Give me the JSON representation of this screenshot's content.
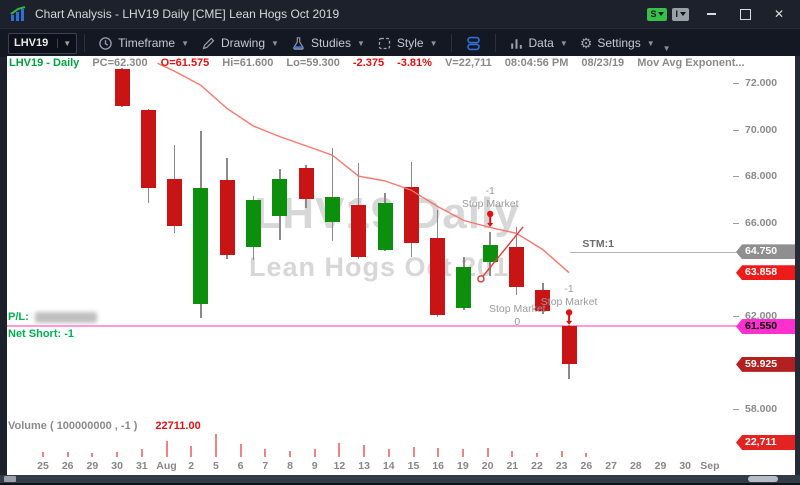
{
  "window": {
    "title": "Chart Analysis - LHV19 Daily [CME] Lean Hogs Oct 2019",
    "app_icon": "chart-app-icon",
    "status_badges": [
      {
        "label": "S",
        "color": "#35c048"
      },
      {
        "label": "I",
        "color": "#9aa0a8"
      }
    ]
  },
  "toolbar": {
    "symbol_value": "LHV19",
    "buttons": [
      {
        "id": "timeframe",
        "label": "Timeframe",
        "icon": "clock-icon",
        "dropdown": true
      },
      {
        "id": "drawing",
        "label": "Drawing",
        "icon": "pencil-icon",
        "dropdown": true
      },
      {
        "id": "studies",
        "label": "Studies",
        "icon": "flask-icon",
        "dropdown": true
      },
      {
        "id": "style",
        "label": "Style",
        "icon": "style-icon",
        "dropdown": true
      },
      {
        "id": "layout",
        "label": "",
        "icon": "layers-icon",
        "dropdown": false
      },
      {
        "id": "data",
        "label": "Data",
        "icon": "bar-chart-icon",
        "dropdown": true
      },
      {
        "id": "settings",
        "label": "Settings",
        "icon": "gear-icon",
        "dropdown": true
      }
    ]
  },
  "info_bar": {
    "symbol": "LHV19 - Daily",
    "fields": [
      {
        "text": "PC=62.300",
        "color": "gray"
      },
      {
        "text": "O=61.575",
        "color": "red"
      },
      {
        "text": "Hi=61.600",
        "color": "gray"
      },
      {
        "text": "Lo=59.300",
        "color": "gray"
      },
      {
        "text": "-2.375",
        "color": "red"
      },
      {
        "text": "-3.81%",
        "color": "red"
      },
      {
        "text": "V=22,711",
        "color": "gray"
      },
      {
        "text": "08:04:56 PM",
        "color": "gray"
      },
      {
        "text": "08/23/19",
        "color": "gray"
      },
      {
        "text": "Mov Avg Exponent...",
        "color": "gray"
      }
    ]
  },
  "position_panel": {
    "pl_label": "P/L:",
    "pl_value_redacted": true,
    "net_label": "Net Short: -1"
  },
  "volume_panel": {
    "label": "Volume ( 100000000 , -1 )",
    "value": "22711.00"
  },
  "chart_data": {
    "type": "candlestick",
    "symbol": "LHV19",
    "interval": "Daily",
    "watermark_line1": "LHV19 Daily",
    "watermark_line2": "Lean Hogs Oct 2019",
    "overlay_study": "Mov Avg Exponential",
    "overlay_last": 63.858,
    "y_axis": {
      "ticks": [
        {
          "label": "72.000",
          "price": 72
        },
        {
          "label": "70.000",
          "price": 70
        },
        {
          "label": "68.000",
          "price": 68
        },
        {
          "label": "66.000",
          "price": 66
        },
        {
          "label": "62.000",
          "price": 62
        },
        {
          "label": "58.000",
          "price": 58
        }
      ],
      "badges": [
        {
          "label": "64.750",
          "price": 64.75,
          "bg": "#8f8f8f",
          "fg": "#ffffff"
        },
        {
          "label": "63.858",
          "price": 63.858,
          "bg": "#ee1b1b",
          "fg": "#ffffff"
        },
        {
          "label": "61.550",
          "price": 61.55,
          "bg": "#ff2fd0",
          "fg": "#000000"
        },
        {
          "label": "59.925",
          "price": 59.925,
          "bg": "#b32020",
          "fg": "#ffffff"
        }
      ],
      "volume_badge": {
        "label": "22,711",
        "bg": "#e32222",
        "fg": "#ffffff"
      }
    },
    "x_axis": {
      "labels": [
        "25",
        "26",
        "29",
        "30",
        "31",
        "Aug",
        "2",
        "5",
        "6",
        "7",
        "8",
        "9",
        "12",
        "13",
        "14",
        "15",
        "16",
        "19",
        "20",
        "21",
        "22",
        "23",
        "26",
        "27",
        "28",
        "29",
        "30",
        "Sep"
      ]
    },
    "candles": [
      [
        "7/30",
        72.62,
        72.65,
        70.95,
        71.02
      ],
      [
        "7/31",
        70.85,
        70.9,
        66.85,
        67.5
      ],
      [
        "8/1",
        67.9,
        69.35,
        65.55,
        65.85
      ],
      [
        "8/2",
        62.5,
        69.95,
        61.9,
        67.5
      ],
      [
        "8/5",
        67.85,
        68.8,
        64.45,
        64.6
      ],
      [
        "8/6",
        64.95,
        67.15,
        64.4,
        67.0
      ],
      [
        "8/7",
        66.3,
        68.3,
        65.25,
        67.9
      ],
      [
        "8/8",
        68.35,
        68.5,
        66.65,
        67.0
      ],
      [
        "8/9",
        66.05,
        69.2,
        65.2,
        67.1
      ],
      [
        "8/12",
        66.75,
        68.55,
        64.45,
        64.55
      ],
      [
        "8/13",
        64.85,
        67.3,
        64.8,
        66.85
      ],
      [
        "8/14",
        67.55,
        68.6,
        64.55,
        65.15
      ],
      [
        "8/15",
        65.35,
        66.55,
        61.95,
        62.05
      ],
      [
        "8/16",
        62.35,
        64.55,
        62.25,
        64.1
      ],
      [
        "8/19",
        64.3,
        65.6,
        63.7,
        65.05
      ],
      [
        "8/20",
        64.95,
        65.8,
        62.9,
        63.25
      ],
      [
        "8/21",
        63.1,
        63.4,
        62.1,
        62.2
      ],
      [
        "8/23",
        61.575,
        61.6,
        59.3,
        59.925
      ]
    ],
    "colors": {
      "up": "#0c8f0c",
      "down": "#c81414",
      "wick": "#8a8a8a",
      "ema": "#f8766d",
      "position_line": "#ff9bd6",
      "volume_bar": "#ef8383",
      "order_pin": "#e01010"
    },
    "ema_points": [
      [
        1.35,
        72.85
      ],
      [
        2,
        72.5
      ],
      [
        3,
        71.9
      ],
      [
        4,
        70.9
      ],
      [
        5,
        70.15
      ],
      [
        6,
        69.7
      ],
      [
        7,
        69.3
      ],
      [
        8,
        68.9
      ],
      [
        9,
        68.0
      ],
      [
        10,
        67.8
      ],
      [
        11,
        67.4
      ],
      [
        12,
        66.7
      ],
      [
        13,
        66.1
      ],
      [
        14,
        65.8
      ],
      [
        15,
        65.55
      ],
      [
        16,
        64.85
      ],
      [
        17,
        63.858
      ]
    ],
    "volume_bars": [
      [
        0,
        5
      ],
      [
        1,
        5
      ],
      [
        2,
        4
      ],
      [
        3,
        5
      ],
      [
        4,
        8
      ],
      [
        5,
        16
      ],
      [
        6,
        11
      ],
      [
        7,
        23
      ],
      [
        8,
        13
      ],
      [
        9,
        8
      ],
      [
        10,
        6
      ],
      [
        11,
        8
      ],
      [
        12,
        14
      ],
      [
        13,
        12
      ],
      [
        14,
        8
      ],
      [
        15,
        10
      ],
      [
        16,
        9
      ],
      [
        17,
        8
      ],
      [
        18,
        9
      ],
      [
        19,
        6
      ],
      [
        20,
        4
      ],
      [
        21,
        6
      ],
      [
        22,
        4
      ]
    ],
    "position_line_price": 61.55,
    "stm_line": {
      "label": "STM:1",
      "price": 64.75,
      "from_index": 17.05
    },
    "trendline": {
      "from_index": 13.61,
      "from_price": 63.55,
      "to_index": 15.25,
      "to_price": 65.82,
      "color": "#e23d3d"
    },
    "orders": [
      {
        "qty": "-1",
        "label": "Stop Market",
        "index": 14,
        "pin": true,
        "text_price": 67.36,
        "pin_top_price": 66.38,
        "pin_bottom_price": 65.82,
        "qty_below": false
      },
      {
        "qty": "0",
        "label": "Stop Market",
        "index": 15.03,
        "pin": false,
        "text_price": 62.32,
        "qty_below": true
      },
      {
        "qty": "-1",
        "label": "Stop Market",
        "index": 17,
        "pin": true,
        "text_price": 63.16,
        "pin_top_price": 62.15,
        "pin_bottom_price": 61.62,
        "qty_below": false
      }
    ]
  }
}
